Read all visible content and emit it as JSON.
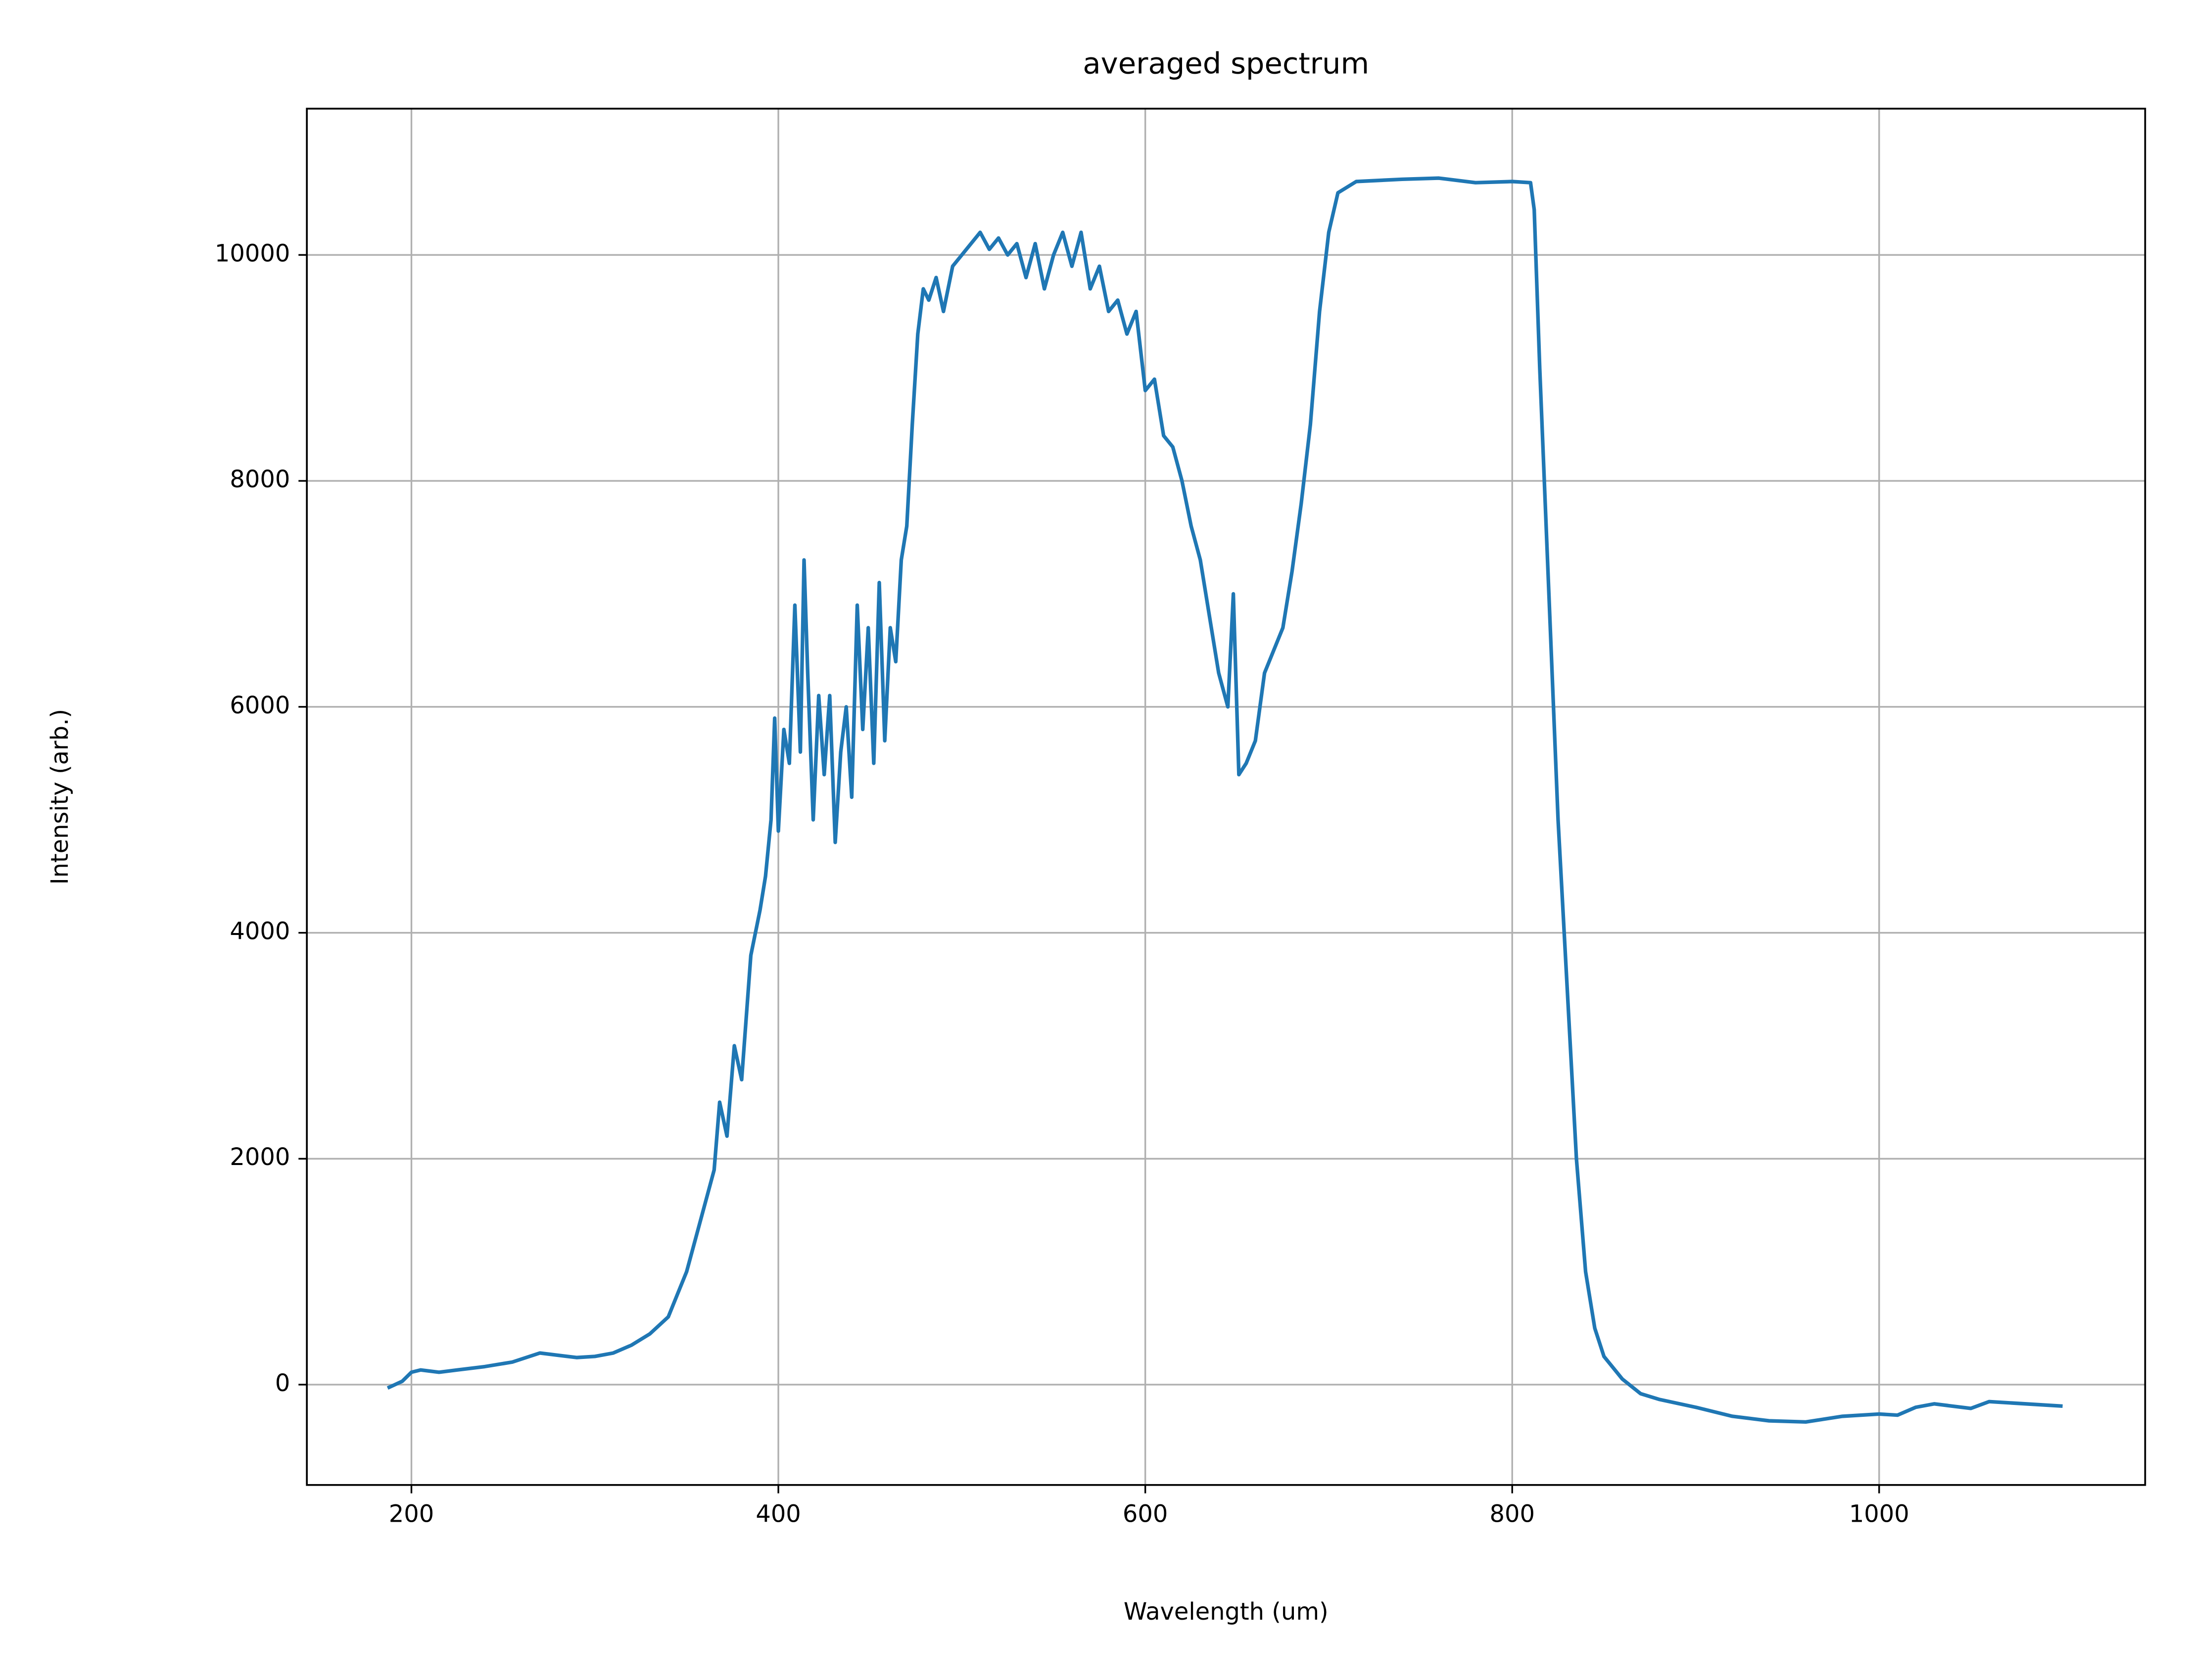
{
  "chart_data": {
    "type": "line",
    "title": "averaged spectrum",
    "xlabel": "Wavelength (um)",
    "ylabel": "Intensity (arb.)",
    "x": [
      187,
      195,
      200,
      205,
      215,
      225,
      240,
      255,
      270,
      280,
      290,
      300,
      310,
      320,
      330,
      340,
      345,
      350,
      355,
      360,
      365,
      368,
      372,
      376,
      380,
      385,
      390,
      393,
      396,
      398,
      400,
      403,
      406,
      409,
      412,
      414,
      416,
      419,
      422,
      425,
      428,
      431,
      434,
      437,
      440,
      443,
      446,
      449,
      452,
      455,
      458,
      461,
      464,
      467,
      470,
      473,
      476,
      479,
      482,
      486,
      490,
      495,
      500,
      505,
      510,
      515,
      520,
      525,
      530,
      535,
      540,
      545,
      550,
      555,
      560,
      565,
      570,
      575,
      580,
      585,
      590,
      595,
      600,
      605,
      610,
      615,
      620,
      625,
      630,
      635,
      640,
      645,
      648,
      651,
      655,
      660,
      665,
      670,
      675,
      680,
      685,
      690,
      695,
      700,
      705,
      715,
      740,
      760,
      780,
      800,
      810,
      812,
      815,
      820,
      825,
      830,
      835,
      840,
      845,
      850,
      860,
      870,
      880,
      900,
      920,
      940,
      960,
      980,
      1000,
      1010,
      1020,
      1030,
      1050,
      1060,
      1080,
      1100
    ],
    "series": [
      {
        "name": "averaged spectrum",
        "color": "#1f77b4",
        "values": [
          -30,
          30,
          110,
          130,
          110,
          130,
          160,
          200,
          280,
          260,
          240,
          250,
          280,
          350,
          450,
          600,
          800,
          1000,
          1300,
          1600,
          1900,
          2500,
          2200,
          3000,
          2700,
          3800,
          4200,
          4500,
          5000,
          5900,
          4900,
          5800,
          5500,
          6900,
          5600,
          7300,
          6300,
          5000,
          6100,
          5400,
          6100,
          4800,
          5600,
          6000,
          5200,
          6900,
          5800,
          6700,
          5500,
          7100,
          5700,
          6700,
          6400,
          7300,
          7600,
          8500,
          9300,
          9700,
          9600,
          9800,
          9500,
          9900,
          10000,
          10100,
          10200,
          10050,
          10150,
          10000,
          10100,
          9800,
          10100,
          9700,
          10000,
          10200,
          9900,
          10200,
          9700,
          9900,
          9500,
          9600,
          9300,
          9500,
          8800,
          8900,
          8400,
          8300,
          8000,
          7600,
          7300,
          6800,
          6300,
          6000,
          7000,
          5400,
          5500,
          5700,
          6300,
          6500,
          6700,
          7200,
          7800,
          8500,
          9500,
          10200,
          10550,
          10650,
          10670,
          10680,
          10640,
          10650,
          10640,
          10400,
          9000,
          7000,
          5000,
          3500,
          2000,
          1000,
          500,
          250,
          50,
          -80,
          -130,
          -200,
          -280,
          -320,
          -330,
          -280,
          -260,
          -270,
          -200,
          -170,
          -210,
          -150,
          -170,
          -190
        ]
      }
    ],
    "xlim": [
      143,
      1145
    ],
    "ylim": [
      -888,
      11295
    ],
    "xticks": [
      200,
      400,
      600,
      800,
      1000
    ],
    "yticks": [
      0,
      2000,
      4000,
      6000,
      8000,
      10000
    ],
    "grid": true
  }
}
